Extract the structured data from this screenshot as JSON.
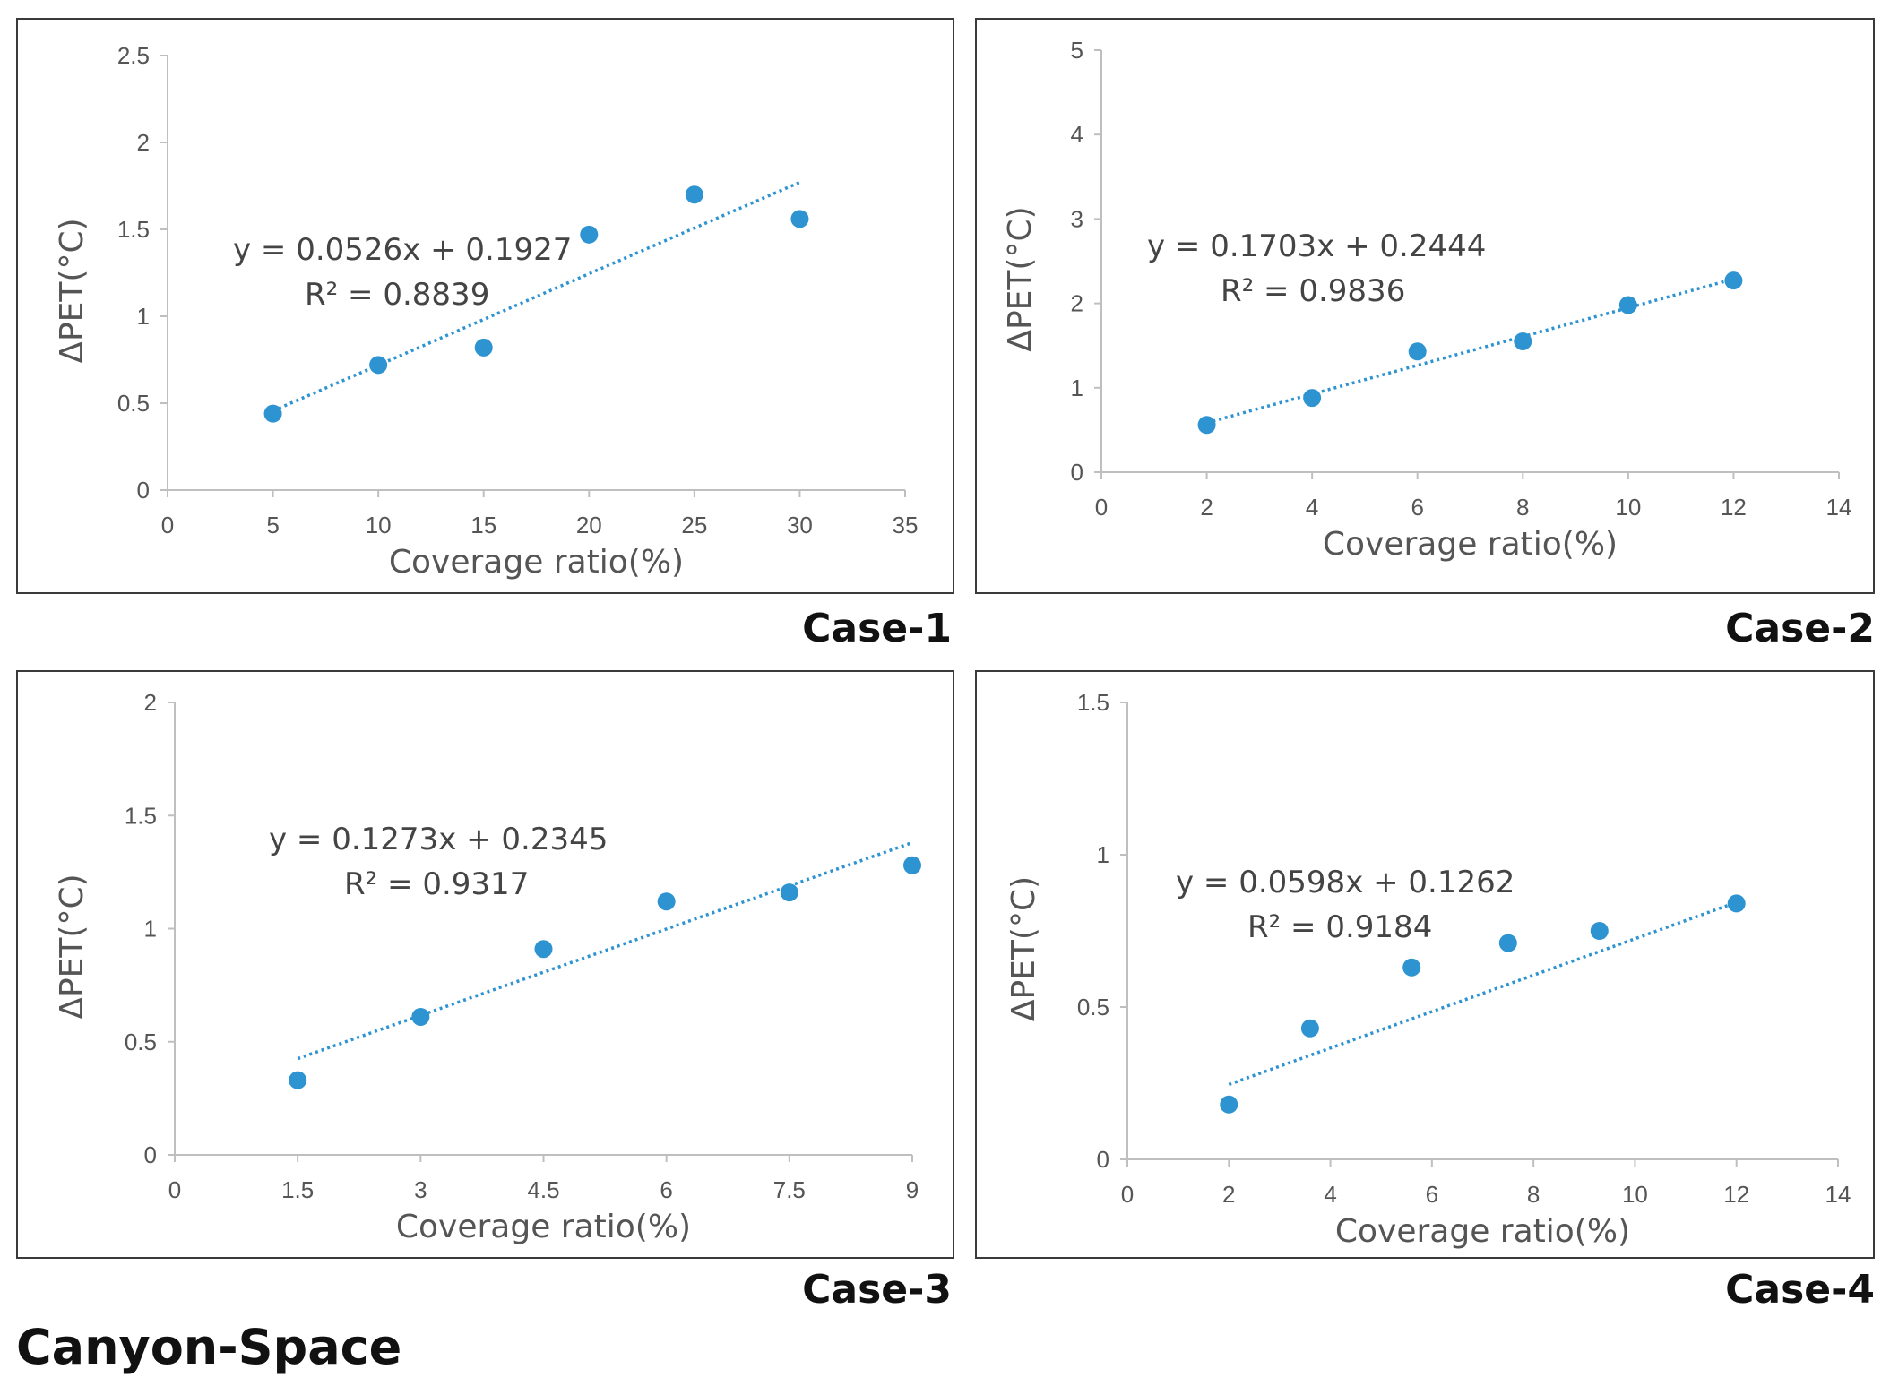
{
  "figure_title": "Canyon-Space",
  "colors": {
    "marker": "#2e93d1",
    "trendline": "#2e93d1",
    "axis": "#bfbfbf",
    "text": "#555555"
  },
  "chart_data": [
    {
      "type": "scatter",
      "case_label": "Case-1",
      "xlabel": "Coverage ratio(%)",
      "ylabel": "ΔPET(°C)",
      "xlim": [
        0,
        35
      ],
      "ylim": [
        0,
        2.5
      ],
      "xticks": [
        "0",
        "5",
        "10",
        "15",
        "20",
        "25",
        "30",
        "35"
      ],
      "yticks": [
        "0",
        "0.5",
        "1",
        "1.5",
        "2",
        "2.5"
      ],
      "x": [
        5,
        10,
        15,
        20,
        25,
        30
      ],
      "y": [
        0.44,
        0.72,
        0.82,
        1.47,
        1.7,
        1.56
      ],
      "trendline": {
        "slope": 0.0526,
        "intercept": 0.1927,
        "x_range": [
          5,
          30
        ]
      },
      "equation": "y = 0.0526x + 0.1927",
      "r2": "R² = 0.8839"
    },
    {
      "type": "scatter",
      "case_label": "Case-2",
      "xlabel": "Coverage ratio(%)",
      "ylabel": "ΔPET(°C)",
      "xlim": [
        0,
        14
      ],
      "ylim": [
        0,
        5
      ],
      "xticks": [
        "0",
        "2",
        "4",
        "6",
        "8",
        "10",
        "12",
        "14"
      ],
      "yticks": [
        "0",
        "1",
        "2",
        "3",
        "4",
        "5"
      ],
      "x": [
        2,
        4,
        6,
        8,
        10,
        12
      ],
      "y": [
        0.56,
        0.88,
        1.43,
        1.55,
        1.98,
        2.27
      ],
      "trendline": {
        "slope": 0.1703,
        "intercept": 0.2444,
        "x_range": [
          2,
          12
        ]
      },
      "equation": "y = 0.1703x + 0.2444",
      "r2": "R² = 0.9836"
    },
    {
      "type": "scatter",
      "case_label": "Case-3",
      "xlabel": "Coverage ratio(%)",
      "ylabel": "ΔPET(°C)",
      "xlim": [
        0,
        9
      ],
      "ylim": [
        0,
        2
      ],
      "xticks": [
        "0",
        "1.5",
        "3",
        "4.5",
        "6",
        "7.5",
        "9"
      ],
      "yticks": [
        "0",
        "0.5",
        "1",
        "1.5",
        "2"
      ],
      "x": [
        1.5,
        3,
        4.5,
        6,
        7.5,
        9
      ],
      "y": [
        0.33,
        0.61,
        0.91,
        1.12,
        1.16,
        1.28
      ],
      "trendline": {
        "slope": 0.1273,
        "intercept": 0.2345,
        "x_range": [
          1.5,
          9
        ]
      },
      "equation": "y = 0.1273x + 0.2345",
      "r2": "R² = 0.9317"
    },
    {
      "type": "scatter",
      "case_label": "Case-4",
      "xlabel": "Coverage ratio(%)",
      "ylabel": "ΔPET(°C)",
      "xlim": [
        0,
        14
      ],
      "ylim": [
        0,
        1.5
      ],
      "xticks": [
        "0",
        "2",
        "4",
        "6",
        "8",
        "10",
        "12",
        "14"
      ],
      "yticks": [
        "0",
        "0.5",
        "1",
        "1.5"
      ],
      "x": [
        2,
        3.6,
        5.6,
        7.5,
        9.3,
        12
      ],
      "y": [
        0.18,
        0.43,
        0.63,
        0.71,
        0.75,
        0.84
      ],
      "trendline": {
        "slope": 0.0598,
        "intercept": 0.1262,
        "x_range": [
          2,
          12
        ]
      },
      "equation": "y = 0.0598x + 0.1262",
      "r2": "R² = 0.9184"
    }
  ]
}
